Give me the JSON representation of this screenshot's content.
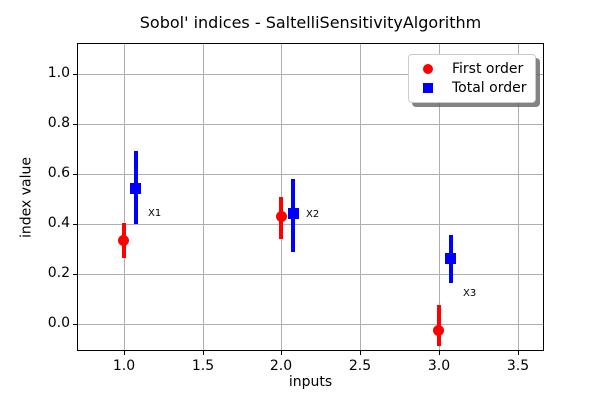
{
  "chart_data": {
    "type": "scatter",
    "title": "Sobol' indices - SaltelliSensitivityAlgorithm",
    "xlabel": "inputs",
    "ylabel": "index value",
    "xlim": [
      0.71,
      3.66
    ],
    "ylim": [
      -0.106,
      1.12
    ],
    "grid": true,
    "colors": {
      "grid": "#b0b0b0",
      "spine": "#000000",
      "first_order": "#ff0000",
      "total_order": "#0000ff"
    },
    "x_ticks": {
      "values": [
        1.0,
        1.5,
        2.0,
        2.5,
        3.0,
        3.5
      ],
      "labels": [
        "1.0",
        "1.5",
        "2.0",
        "2.5",
        "3.0",
        "3.5"
      ]
    },
    "y_ticks": {
      "values": [
        0.0,
        0.2,
        0.4,
        0.6,
        0.8,
        1.0
      ],
      "labels": [
        "0.0",
        "0.2",
        "0.4",
        "0.6",
        "0.8",
        "1.0"
      ]
    },
    "legend": {
      "position": "upper right",
      "entries": [
        {
          "label": "First order",
          "marker": "circle",
          "color": "#ff0000"
        },
        {
          "label": "Total order",
          "marker": "square",
          "color": "#0000ff"
        }
      ]
    },
    "series": [
      {
        "name": "First order",
        "marker": "circle",
        "color": "#ff0000",
        "points": [
          {
            "input": "X1",
            "x": 1.0,
            "y": 0.333,
            "ci_low": 0.262,
            "ci_high": 0.404
          },
          {
            "input": "X2",
            "x": 2.0,
            "y": 0.428,
            "ci_low": 0.338,
            "ci_high": 0.508
          },
          {
            "input": "X3",
            "x": 3.0,
            "y": -0.027,
            "ci_low": -0.089,
            "ci_high": 0.076
          }
        ]
      },
      {
        "name": "Total order",
        "marker": "square",
        "color": "#0000ff",
        "points": [
          {
            "input": "X1",
            "x": 1.075,
            "y": 0.54,
            "ci_low": 0.398,
            "ci_high": 0.69
          },
          {
            "input": "X2",
            "x": 2.075,
            "y": 0.442,
            "ci_low": 0.286,
            "ci_high": 0.578
          },
          {
            "input": "X3",
            "x": 3.075,
            "y": 0.259,
            "ci_low": 0.162,
            "ci_high": 0.355
          }
        ]
      }
    ],
    "annotations": [
      {
        "text": "X1",
        "x": 1.155,
        "y": 0.437
      },
      {
        "text": "X2",
        "x": 2.155,
        "y": 0.435
      },
      {
        "text": "X3",
        "x": 3.15,
        "y": 0.12
      }
    ]
  }
}
